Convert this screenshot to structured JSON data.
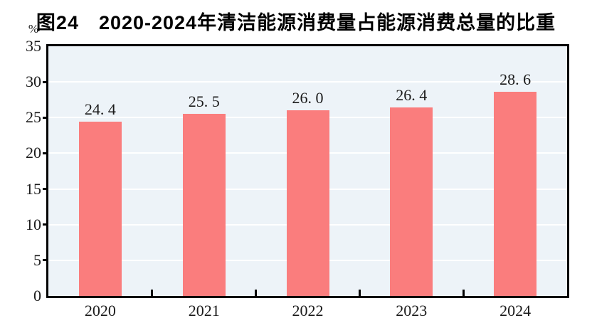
{
  "chart": {
    "title": "图24　2020-2024年清洁能源消费量占能源消费总量的比重",
    "y_unit_label": "%"
  },
  "chart_data": {
    "type": "bar",
    "title": "图24　2020-2024年清洁能源消费量占能源消费总量的比重",
    "categories": [
      "2020",
      "2021",
      "2022",
      "2023",
      "2024"
    ],
    "values": [
      24.4,
      25.5,
      26.0,
      26.4,
      28.6
    ],
    "value_labels": [
      "24. 4",
      "25. 5",
      "26. 0",
      "26. 4",
      "28. 6"
    ],
    "xlabel": "",
    "ylabel": "%",
    "ylim": [
      0,
      35
    ],
    "ytick_step": 5,
    "ytick_labels": [
      "0",
      "5",
      "10",
      "15",
      "20",
      "25",
      "30",
      "35"
    ],
    "grid": "horizontal",
    "legend": "none",
    "colors": {
      "bar": "#FA7D7D",
      "plot_background": "#EDF3F8",
      "gridline": "#FFFFFF",
      "axis": "#000000",
      "text": "#1a1a1a"
    }
  }
}
